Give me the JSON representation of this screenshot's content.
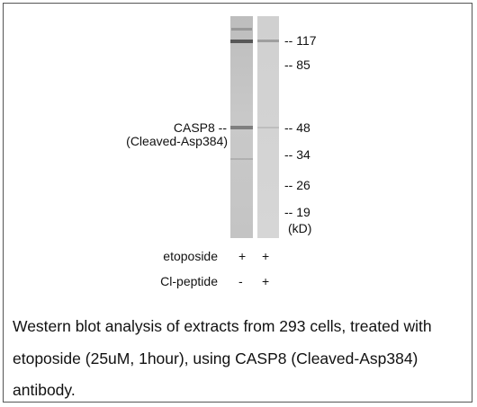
{
  "blot": {
    "band_label": [
      "CASP8 --",
      "(Cleaved-Asp384)"
    ],
    "markers": [
      "-- 117",
      "-- 85",
      "-- 48",
      "-- 34",
      "-- 26",
      "-- 19"
    ],
    "unit": "(kD)"
  },
  "treatments": [
    {
      "name": "etoposide",
      "lanes": [
        "+",
        "+"
      ]
    },
    {
      "name": "Cl-peptide",
      "lanes": [
        "-",
        "+"
      ]
    }
  ],
  "caption": "Western blot analysis of extracts from 293 cells, treated with etoposide (25uM, 1hour), using CASP8 (Cleaved-Asp384) antibody."
}
